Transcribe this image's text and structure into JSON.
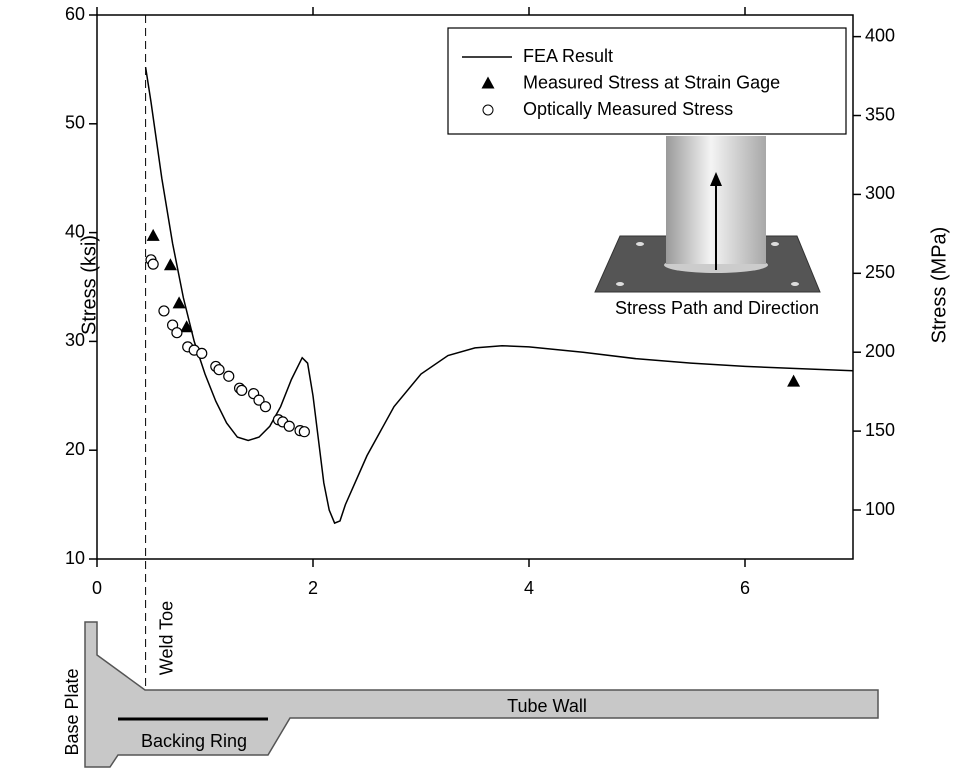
{
  "chart_data": {
    "type": "line",
    "y_label": "Stress (ksi)",
    "y2_label": "Stress (MPa)",
    "xlim": [
      0,
      7
    ],
    "xticks": [
      0,
      2,
      4,
      6
    ],
    "ylim": [
      10,
      60
    ],
    "yticks": [
      10,
      20,
      30,
      40,
      50,
      60
    ],
    "y2lim": [
      68.95,
      413.7
    ],
    "y2ticks": [
      100,
      150,
      200,
      250,
      300,
      350,
      400
    ],
    "legend": "top-right",
    "reference_line": {
      "x": 0.45,
      "label": "Weld Toe"
    },
    "inset_label": "Stress Path and Direction",
    "series": [
      {
        "name": "FEA Result",
        "type": "line",
        "color": "#000000",
        "x": [
          0.45,
          0.5,
          0.6,
          0.7,
          0.8,
          0.9,
          1.0,
          1.1,
          1.2,
          1.3,
          1.4,
          1.5,
          1.6,
          1.7,
          1.8,
          1.9,
          1.95,
          2.0,
          2.05,
          2.1,
          2.15,
          2.2,
          2.25,
          2.3,
          2.5,
          2.75,
          3.0,
          3.25,
          3.5,
          3.75,
          4.0,
          4.5,
          5.0,
          5.5,
          6.0,
          6.5,
          7.0
        ],
        "values": [
          55.2,
          52,
          45,
          39,
          34,
          30,
          27,
          24.5,
          22.5,
          21.2,
          20.9,
          21.2,
          22.2,
          24,
          26.5,
          28.5,
          28,
          25,
          21,
          17,
          14.5,
          13.3,
          13.5,
          15,
          19.5,
          24,
          27,
          28.7,
          29.4,
          29.6,
          29.5,
          29,
          28.4,
          28,
          27.7,
          27.5,
          27.3
        ]
      },
      {
        "name": "Measured Stress at Strain Gage",
        "type": "scatter",
        "marker": "triangle",
        "color": "#000000",
        "x": [
          0.52,
          0.68,
          0.76,
          0.83,
          6.45
        ],
        "values": [
          39.7,
          37,
          33.5,
          31.3,
          26.3
        ]
      },
      {
        "name": "Optically Measured Stress",
        "type": "scatter",
        "marker": "circle",
        "color": "#000000",
        "x": [
          0.5,
          0.52,
          0.62,
          0.7,
          0.74,
          0.84,
          0.9,
          0.97,
          1.1,
          1.13,
          1.22,
          1.32,
          1.34,
          1.45,
          1.5,
          1.56,
          1.68,
          1.72,
          1.78,
          1.88,
          1.92
        ],
        "values": [
          37.5,
          37.1,
          32.8,
          31.5,
          30.8,
          29.5,
          29.2,
          28.9,
          27.7,
          27.4,
          26.8,
          25.7,
          25.5,
          25.2,
          24.6,
          24,
          22.8,
          22.6,
          22.2,
          21.8,
          21.7
        ]
      }
    ]
  },
  "cross_section": {
    "base_plate": "Base Plate",
    "backing_ring": "Backing Ring",
    "tube_wall": "Tube Wall"
  }
}
